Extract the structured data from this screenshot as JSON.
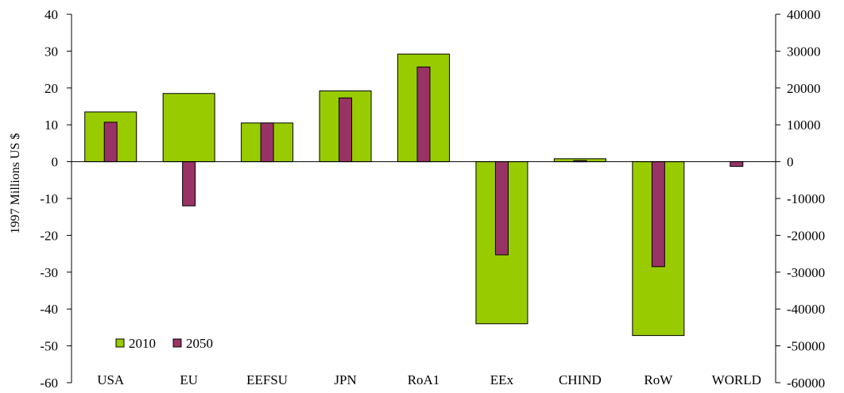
{
  "chart_data": {
    "type": "bar",
    "categories": [
      "USA",
      "EU",
      "EEFSU",
      "JPN",
      "RoA1",
      "EEx",
      "CHIND",
      "RoW",
      "WORLD"
    ],
    "series": [
      {
        "name": "2010",
        "axis": "left",
        "color": "#99cc00",
        "values": [
          13.5,
          18.5,
          10.5,
          19.2,
          29.2,
          -44,
          0.8,
          -47.2,
          0
        ]
      },
      {
        "name": "2050",
        "axis": "right",
        "color": "#993366",
        "values": [
          10700,
          -12000,
          10500,
          17300,
          25700,
          -25300,
          300,
          -28500,
          -1300
        ]
      }
    ],
    "y_left": {
      "label": "1997 Millions US $",
      "min": -60,
      "max": 40,
      "ticks": [
        40,
        30,
        20,
        10,
        0,
        -10,
        -20,
        -30,
        -40,
        -50,
        -60
      ]
    },
    "y_right": {
      "min": -60000,
      "max": 40000,
      "ticks": [
        40000,
        30000,
        20000,
        10000,
        0,
        -10000,
        -20000,
        -30000,
        -40000,
        -50000,
        -60000
      ]
    },
    "legend": {
      "position": "bottom-left"
    },
    "grid": false
  }
}
